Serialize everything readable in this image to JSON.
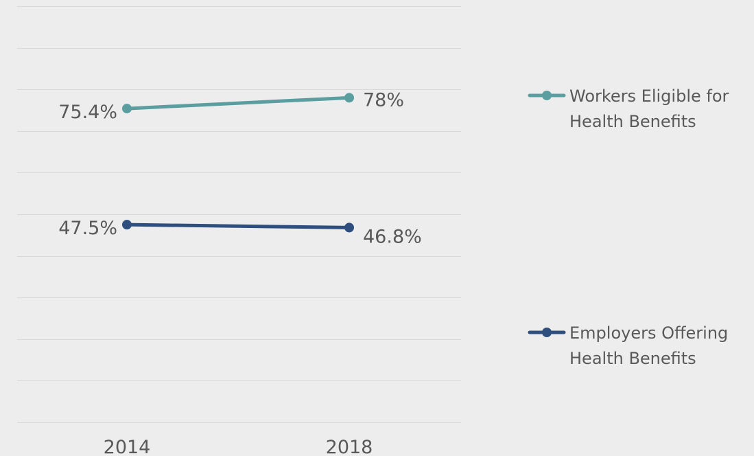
{
  "chart_data": {
    "type": "line",
    "categories": [
      "2014",
      "2018"
    ],
    "ylim": [
      0,
      100
    ],
    "grid": true,
    "legend_position": "right",
    "series": [
      {
        "name": "Workers Eligible for Health Benefits",
        "name_lines": [
          "Workers Eligible for",
          "Health Benefits"
        ],
        "values": [
          75.4,
          78
        ],
        "labels": [
          "75.4%",
          "78%"
        ],
        "color": "#5b9ea0"
      },
      {
        "name": "Employers Offering Health Benefits",
        "name_lines": [
          "Employers Offering",
          "Health Benefits"
        ],
        "values": [
          47.5,
          46.8
        ],
        "labels": [
          "47.5%",
          "46.8%"
        ],
        "color": "#2e4e7e"
      }
    ]
  }
}
